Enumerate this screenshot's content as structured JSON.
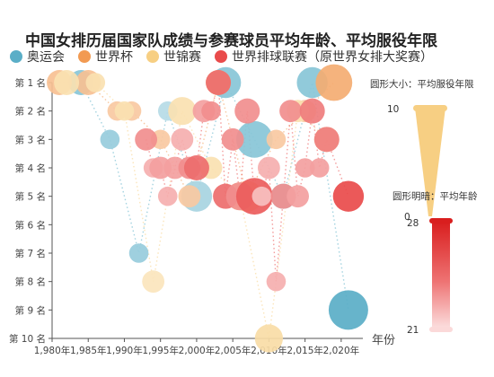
{
  "chart_data": {
    "type": "scatter",
    "title": "中国女排历届国家队成绩与参赛球员平均年龄、平均服役年限",
    "xlabel": "年份",
    "ylabel": "",
    "xlim": [
      1980,
      2023
    ],
    "ylim": [
      1,
      10
    ],
    "x_ticks": [
      1980,
      1985,
      1990,
      1995,
      2000,
      2005,
      2010,
      2015,
      2020
    ],
    "x_tick_labels": [
      "1,980年",
      "1,985年",
      "1,990年",
      "1,995年",
      "2,000年",
      "2,005年",
      "2,010年",
      "2,015年",
      "2,020年"
    ],
    "y_ticks": [
      1,
      2,
      3,
      4,
      5,
      6,
      7,
      8,
      9,
      10
    ],
    "y_tick_labels": [
      "第 1 名",
      "第 2 名",
      "第 3 名",
      "第 4 名",
      "第 5 名",
      "第 6 名",
      "第 7 名",
      "第 8 名",
      "第 9 名",
      "第 10 名"
    ],
    "y_inverted": true,
    "size_legend": {
      "title": "圆形大小：平均服役年限",
      "max_label": "10",
      "min_label": "0",
      "max": 10,
      "min": 0
    },
    "color_legend": {
      "title": "圆形明暗：平均年龄",
      "max_label": "28",
      "min_label": "21",
      "max": 28,
      "min": 21
    },
    "series": [
      {
        "name": "奥运会",
        "color": "#5aaec7",
        "points": [
          {
            "x": 1984,
            "y": 1,
            "size": 5,
            "age": 25
          },
          {
            "x": 1988,
            "y": 3,
            "size": 3,
            "age": 24
          },
          {
            "x": 1992,
            "y": 7,
            "size": 3,
            "age": 24
          },
          {
            "x": 1996,
            "y": 2,
            "size": 3,
            "age": 22
          },
          {
            "x": 2000,
            "y": 5,
            "size": 7,
            "age": 23
          },
          {
            "x": 2004,
            "y": 1,
            "size": 7,
            "age": 25
          },
          {
            "x": 2008,
            "y": 3,
            "size": 9,
            "age": 25
          },
          {
            "x": 2012,
            "y": 5,
            "size": 5,
            "age": 25
          },
          {
            "x": 2016,
            "y": 1,
            "size": 7,
            "age": 25
          },
          {
            "x": 2021,
            "y": 9,
            "size": 10,
            "age": 28
          }
        ]
      },
      {
        "name": "世界杯",
        "color": "#f29a52",
        "points": [
          {
            "x": 1981,
            "y": 1,
            "size": 5,
            "age": 24
          },
          {
            "x": 1985,
            "y": 1,
            "size": 5,
            "age": 24
          },
          {
            "x": 1989,
            "y": 2,
            "size": 3,
            "age": 23
          },
          {
            "x": 1991,
            "y": 2,
            "size": 3,
            "age": 23
          },
          {
            "x": 1995,
            "y": 3,
            "size": 3,
            "age": 23
          },
          {
            "x": 1999,
            "y": 5,
            "size": 4,
            "age": 23
          },
          {
            "x": 2003,
            "y": 1,
            "size": 5,
            "age": 25
          },
          {
            "x": 2007,
            "y": 5,
            "size": 7,
            "age": 24
          },
          {
            "x": 2011,
            "y": 3,
            "size": 3,
            "age": 23
          },
          {
            "x": 2015,
            "y": 2,
            "size": 4,
            "age": 23
          },
          {
            "x": 2019,
            "y": 1,
            "size": 9,
            "age": 26
          }
        ]
      },
      {
        "name": "世锦赛",
        "color": "#f7cf83",
        "points": [
          {
            "x": 1982,
            "y": 1,
            "size": 5,
            "age": 24
          },
          {
            "x": 1986,
            "y": 1,
            "size": 3,
            "age": 24
          },
          {
            "x": 1990,
            "y": 2,
            "size": 3,
            "age": 24
          },
          {
            "x": 1994,
            "y": 8,
            "size": 4,
            "age": 23
          },
          {
            "x": 1998,
            "y": 2,
            "size": 6,
            "age": 24
          },
          {
            "x": 2002,
            "y": 4,
            "size": 4,
            "age": 24
          },
          {
            "x": 2006,
            "y": 5,
            "size": 6,
            "age": 25
          },
          {
            "x": 2010,
            "y": 10,
            "size": 6,
            "age": 25
          },
          {
            "x": 2014,
            "y": 2,
            "size": 4,
            "age": 24
          },
          {
            "x": 2018,
            "y": 3,
            "size": 5,
            "age": 25
          }
        ]
      },
      {
        "name": "世界排球联赛（原世界女排大奖赛）",
        "color": "#e94b4b",
        "points": [
          {
            "x": 1993,
            "y": 3,
            "size": 4,
            "age": 24
          },
          {
            "x": 1994,
            "y": 4,
            "size": 3,
            "age": 22
          },
          {
            "x": 1995,
            "y": 4,
            "size": 4,
            "age": 23
          },
          {
            "x": 1996,
            "y": 5,
            "size": 3,
            "age": 22
          },
          {
            "x": 1997,
            "y": 4,
            "size": 4,
            "age": 23
          },
          {
            "x": 1998,
            "y": 3,
            "size": 4,
            "age": 22
          },
          {
            "x": 1999,
            "y": 4,
            "size": 4,
            "age": 24
          },
          {
            "x": 2000,
            "y": 4,
            "size": 5,
            "age": 26
          },
          {
            "x": 2001,
            "y": 2,
            "size": 4,
            "age": 23
          },
          {
            "x": 2002,
            "y": 2,
            "size": 3,
            "age": 24
          },
          {
            "x": 2003,
            "y": 1,
            "size": 5,
            "age": 26
          },
          {
            "x": 2004,
            "y": 5,
            "size": 5,
            "age": 26
          },
          {
            "x": 2005,
            "y": 3,
            "size": 4,
            "age": 24
          },
          {
            "x": 2006,
            "y": 5,
            "size": 6,
            "age": 24
          },
          {
            "x": 2007,
            "y": 2,
            "size": 5,
            "age": 24
          },
          {
            "x": 2008,
            "y": 5,
            "size": 9,
            "age": 27
          },
          {
            "x": 2009,
            "y": 5,
            "size": 3,
            "age": 21
          },
          {
            "x": 2010,
            "y": 4,
            "size": 4,
            "age": 22
          },
          {
            "x": 2011,
            "y": 8,
            "size": 3,
            "age": 22
          },
          {
            "x": 2012,
            "y": 5,
            "size": 5,
            "age": 24
          },
          {
            "x": 2013,
            "y": 2,
            "size": 4,
            "age": 24
          },
          {
            "x": 2014,
            "y": 5,
            "size": 4,
            "age": 23
          },
          {
            "x": 2015,
            "y": 4,
            "size": 3,
            "age": 23
          },
          {
            "x": 2016,
            "y": 2,
            "size": 5,
            "age": 25
          },
          {
            "x": 2017,
            "y": 4,
            "size": 3,
            "age": 23
          },
          {
            "x": 2018,
            "y": 3,
            "size": 5,
            "age": 25
          },
          {
            "x": 2021,
            "y": 5,
            "size": 7,
            "age": 28
          }
        ]
      }
    ]
  }
}
